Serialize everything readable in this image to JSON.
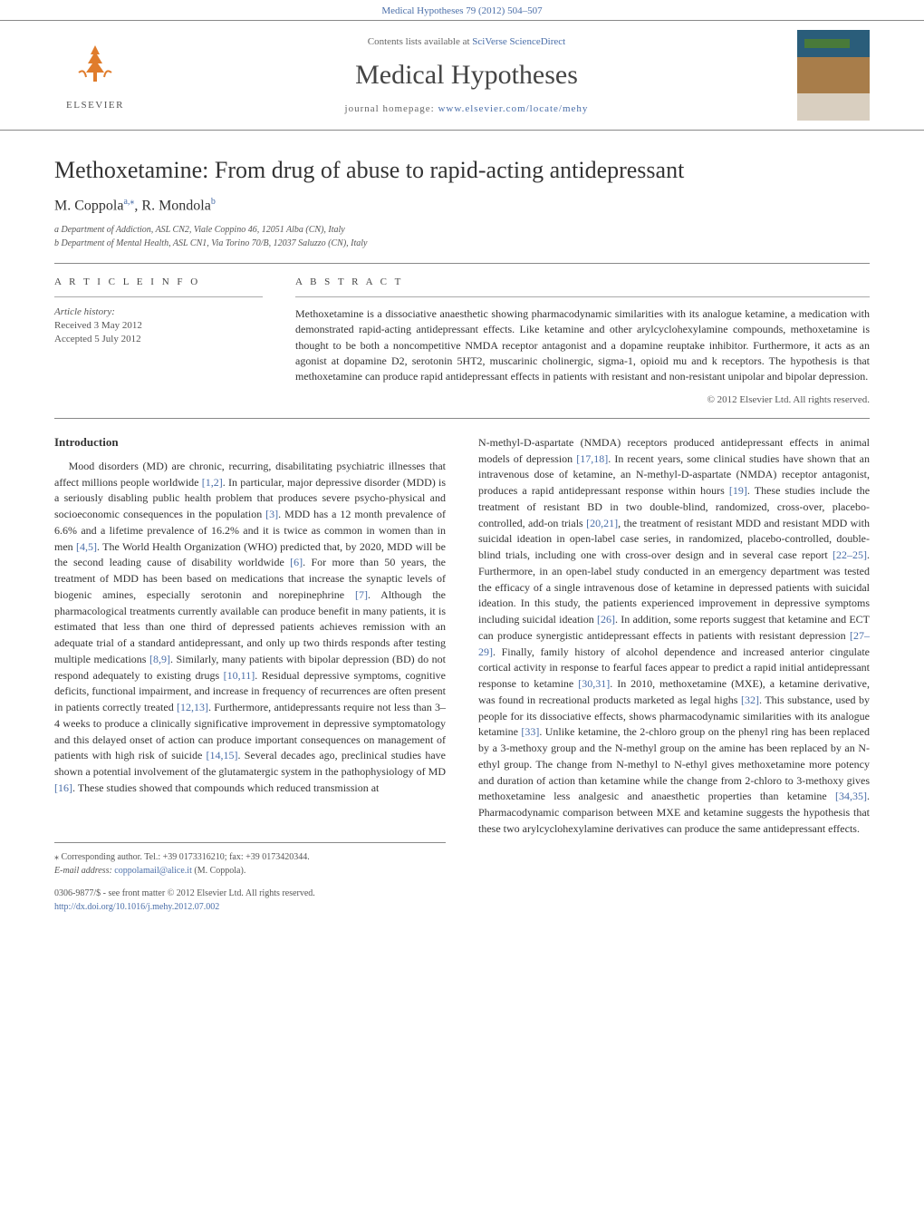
{
  "header": {
    "citation": "Medical Hypotheses 79 (2012) 504–507"
  },
  "masthead": {
    "elsevier_label": "ELSEVIER",
    "contents_prefix": "Contents lists available at ",
    "contents_link": "SciVerse ScienceDirect",
    "journal_name": "Medical Hypotheses",
    "homepage_prefix": "journal homepage: ",
    "homepage_link": "www.elsevier.com/locate/mehy"
  },
  "article": {
    "title": "Methoxetamine: From drug of abuse to rapid-acting antidepressant",
    "authors_html": "M. Coppola <sup>a,*</sup>, R. Mondola <sup>b</sup>",
    "author1": "M. Coppola",
    "author1_sup": "a,⁎",
    "author2": "R. Mondola",
    "author2_sup": "b",
    "affiliation_a": "a Department of Addiction, ASL CN2, Viale Coppino 46, 12051 Alba (CN), Italy",
    "affiliation_b": "b Department of Mental Health, ASL CN1, Via Torino 70/B, 12037 Saluzzo (CN), Italy"
  },
  "info": {
    "heading": "A R T I C L E   I N F O",
    "history_label": "Article history:",
    "received": "Received 3 May 2012",
    "accepted": "Accepted 5 July 2012"
  },
  "abstract": {
    "heading": "A B S T R A C T",
    "text": "Methoxetamine is a dissociative anaesthetic showing pharmacodynamic similarities with its analogue ketamine, a medication with demonstrated rapid-acting antidepressant effects. Like ketamine and other arylcyclohexylamine compounds, methoxetamine is thought to be both a noncompetitive NMDA receptor antagonist and a dopamine reuptake inhibitor. Furthermore, it acts as an agonist at dopamine D2, serotonin 5HT2, muscarinic cholinergic, sigma-1, opioid mu and k receptors. The hypothesis is that methoxetamine can produce rapid antidepressant effects in patients with resistant and non-resistant unipolar and bipolar depression.",
    "copyright": "© 2012 Elsevier Ltd. All rights reserved."
  },
  "intro_heading": "Introduction",
  "body_left": "Mood disorders (MD) are chronic, recurring, disabilitating psychiatric illnesses that affect millions people worldwide [1,2]. In particular, major depressive disorder (MDD) is a seriously disabling public health problem that produces severe psycho-physical and socioeconomic consequences in the population [3]. MDD has a 12 month prevalence of 6.6% and a lifetime prevalence of 16.2% and it is twice as common in women than in men [4,5]. The World Health Organization (WHO) predicted that, by 2020, MDD will be the second leading cause of disability worldwide [6]. For more than 50 years, the treatment of MDD has been based on medications that increase the synaptic levels of biogenic amines, especially serotonin and norepinephrine [7]. Although the pharmacological treatments currently available can produce benefit in many patients, it is estimated that less than one third of depressed patients achieves remission with an adequate trial of a standard antidepressant, and only up two thirds responds after testing multiple medications [8,9]. Similarly, many patients with bipolar depression (BD) do not respond adequately to existing drugs [10,11]. Residual depressive symptoms, cognitive deficits, functional impairment, and increase in frequency of recurrences are often present in patients correctly treated [12,13]. Furthermore, antidepressants require not less than 3–4 weeks to produce a clinically significative improvement in depressive symptomatology and this delayed onset of action can produce important consequences on management of patients with high risk of suicide [14,15]. Several decades ago, preclinical studies have shown a potential involvement of the glutamatergic system in the pathophysiology of MD [16]. These studies showed that compounds which reduced transmission at",
  "body_right": "N-methyl-D-aspartate (NMDA) receptors produced antidepressant effects in animal models of depression [17,18]. In recent years, some clinical studies have shown that an intravenous dose of ketamine, an N-methyl-D-aspartate (NMDA) receptor antagonist, produces a rapid antidepressant response within hours [19]. These studies include the treatment of resistant BD in two double-blind, randomized, cross-over, placebo-controlled, add-on trials [20,21], the treatment of resistant MDD and resistant MDD with suicidal ideation in open-label case series, in randomized, placebo-controlled, double-blind trials, including one with cross-over design and in several case report [22–25]. Furthermore, in an open-label study conducted in an emergency department was tested the efficacy of a single intravenous dose of ketamine in depressed patients with suicidal ideation. In this study, the patients experienced improvement in depressive symptoms including suicidal ideation [26]. In addition, some reports suggest that ketamine and ECT can produce synergistic antidepressant effects in patients with resistant depression [27–29]. Finally, family history of alcohol dependence and increased anterior cingulate cortical activity in response to fearful faces appear to predict a rapid initial antidepressant response to ketamine [30,31]. In 2010, methoxetamine (MXE), a ketamine derivative, was found in recreational products marketed as legal highs [32]. This substance, used by people for its dissociative effects, shows pharmacodynamic similarities with its analogue ketamine [33]. Unlike ketamine, the 2-chloro group on the phenyl ring has been replaced by a 3-methoxy group and the N-methyl group on the amine has been replaced by an N-ethyl group. The change from N-methyl to N-ethyl gives methoxetamine more potency and duration of action than ketamine while the change from 2-chloro to 3-methoxy gives methoxetamine less analgesic and anaesthetic properties than ketamine [34,35]. Pharmacodynamic comparison between MXE and ketamine suggests the hypothesis that these two arylcyclohexylamine derivatives can produce the same antidepressant effects.",
  "footer": {
    "corresponding": "⁎ Corresponding author. Tel.: +39 0173316210; fax: +39 0173420344.",
    "email_label": "E-mail address:",
    "email": "coppolamail@alice.it",
    "email_suffix": "(M. Coppola).",
    "issn": "0306-9877/$ - see front matter © 2012 Elsevier Ltd. All rights reserved.",
    "doi": "http://dx.doi.org/10.1016/j.mehy.2012.07.002"
  },
  "colors": {
    "link": "#4a6ea8",
    "text": "#333333",
    "rule": "#888888"
  }
}
